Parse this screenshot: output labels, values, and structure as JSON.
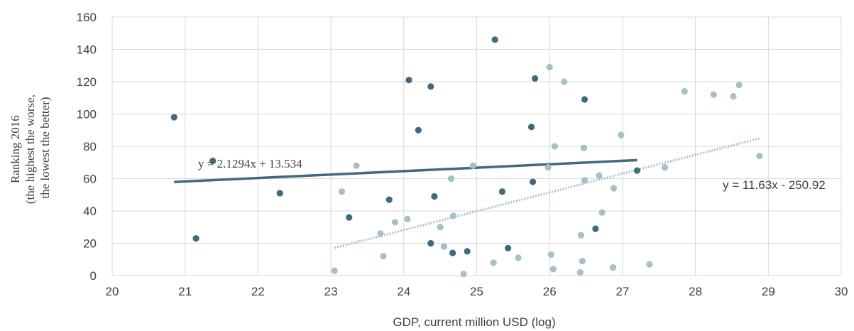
{
  "chart_data": {
    "type": "scatter",
    "title": "",
    "xlabel": "GDP, current million USD (log)",
    "ylabel_lines": [
      "Ranking 2016",
      "(the highest the worse,",
      "the lowest the better)"
    ],
    "xlim": [
      20,
      30
    ],
    "ylim": [
      0,
      160
    ],
    "x_ticks": [
      "20",
      "21",
      "22",
      "23",
      "24",
      "25",
      "26",
      "27",
      "28",
      "29",
      "30"
    ],
    "y_ticks": [
      "0",
      "20",
      "40",
      "60",
      "80",
      "100",
      "120",
      "140",
      "160"
    ],
    "grid": true,
    "colors": {
      "dark": "#44697d",
      "light": "#a5bfcc",
      "grid": "#d9d9d9",
      "text": "#404040"
    },
    "series": [
      {
        "color": "#44697d",
        "x": [
          20.85,
          21.15,
          21.38,
          22.3,
          23.25,
          23.8,
          24.07,
          24.2,
          24.37,
          24.37,
          24.42,
          24.67,
          24.87,
          25.25,
          25.35,
          25.43,
          25.75,
          25.77,
          25.8,
          26.48,
          26.63,
          27.2
        ],
        "y": [
          98,
          23,
          71,
          51,
          36,
          47,
          121,
          90,
          117,
          20,
          49,
          14,
          15,
          146,
          52,
          17,
          92,
          58,
          122,
          109,
          29,
          65
        ],
        "trendline": {
          "type": "linear",
          "equation": "y = 2.1294x + 13.534",
          "slope": 2.1294,
          "intercept": 13.534,
          "x_range": [
            20.85,
            27.2
          ],
          "style": "solid"
        }
      },
      {
        "color": "#a5bfcc",
        "x": [
          23.05,
          23.15,
          23.35,
          23.68,
          23.72,
          23.88,
          24.05,
          24.5,
          24.55,
          24.65,
          24.68,
          24.82,
          24.95,
          25.23,
          25.57,
          25.98,
          26.0,
          26.02,
          26.05,
          26.07,
          26.2,
          26.42,
          26.43,
          26.45,
          26.47,
          26.48,
          26.68,
          26.72,
          26.87,
          26.88,
          26.98,
          27.37,
          27.58,
          27.85,
          28.25,
          28.52,
          28.6,
          28.88
        ],
        "y": [
          3,
          52,
          68,
          26,
          12,
          33,
          35,
          30,
          18,
          60,
          37,
          1,
          68,
          8,
          11,
          67,
          129,
          13,
          4,
          80,
          120,
          2,
          25,
          9,
          79,
          59,
          62,
          39,
          5,
          54,
          87,
          7,
          67,
          114,
          112,
          111,
          118,
          74
        ],
        "trendline": {
          "type": "linear",
          "equation": "y = 11.63x - 250.92",
          "slope": 11.63,
          "intercept": -250.92,
          "x_range": [
            23.05,
            28.88
          ],
          "style": "dotted"
        }
      }
    ]
  }
}
